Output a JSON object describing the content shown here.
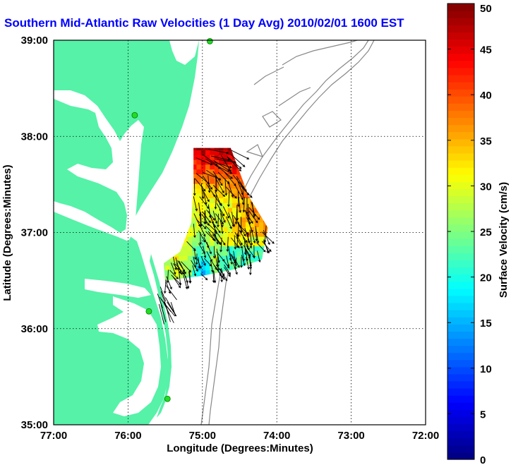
{
  "title": "Southern Mid-Atlantic Raw Velocities (1 Day Avg) 2010/02/01 1600 EST",
  "map": {
    "xlabel": "Longitude (Degrees:Minutes)",
    "ylabel": "Latitude (Degrees:Minutes)",
    "x_ticks": [
      "77:00",
      "76:00",
      "75:00",
      "74:00",
      "73:00",
      "72:00"
    ],
    "y_ticks": [
      "39:00",
      "38:00",
      "37:00",
      "36:00",
      "35:00"
    ],
    "lon_range": [
      -77,
      -72
    ],
    "lat_range": [
      35,
      39
    ],
    "grid": "dotted",
    "land_color": "#55f2a8",
    "water_color": "#ffffff",
    "bathymetry_color": "#888888",
    "site_marker_color": "#22dd22"
  },
  "colorbar": {
    "label": "Surface Velocity (cm/s)",
    "ticks": [
      "0",
      "5",
      "10",
      "15",
      "20",
      "25",
      "30",
      "35",
      "40",
      "45",
      "50"
    ],
    "range": [
      0,
      50
    ],
    "colormap": "jet"
  },
  "chart_data": {
    "type": "heatmap",
    "title": "Southern Mid-Atlantic Raw Velocities (1 Day Avg) 2010/02/01 1600 EST",
    "xlabel": "Longitude (Degrees:Minutes)",
    "ylabel": "Latitude (Degrees:Minutes)",
    "xlim": [
      -77,
      -72
    ],
    "ylim": [
      35,
      39
    ],
    "value_label": "Surface Velocity (cm/s)",
    "value_range": [
      0,
      50
    ],
    "coverage_region": [
      [
        -75.12,
        37.88
      ],
      [
        -74.62,
        37.88
      ],
      [
        -74.38,
        37.38
      ],
      [
        -74.12,
        37.05
      ],
      [
        -74.2,
        36.72
      ],
      [
        -74.55,
        36.62
      ],
      [
        -75.0,
        36.55
      ],
      [
        -75.5,
        36.5
      ],
      [
        -75.52,
        36.68
      ],
      [
        -75.3,
        36.8
      ],
      [
        -75.15,
        37.1
      ],
      [
        -75.12,
        37.5
      ]
    ],
    "velocity_zones": [
      {
        "region": "north edge",
        "speed": 48
      },
      {
        "region": "northeast corner",
        "speed": 40
      },
      {
        "region": "central",
        "speed": 30
      },
      {
        "region": "southwest interior",
        "speed": 12
      },
      {
        "region": "southeast edge",
        "speed": 18
      },
      {
        "region": "west edge near coast",
        "speed": 24
      }
    ],
    "mean_current_direction": "southeast",
    "hf_radar_sites": [
      {
        "lon": -74.9,
        "lat": 38.99
      },
      {
        "lon": -75.91,
        "lat": 38.22
      },
      {
        "lon": -75.72,
        "lat": 36.18
      },
      {
        "lon": -75.47,
        "lat": 35.27
      }
    ]
  }
}
